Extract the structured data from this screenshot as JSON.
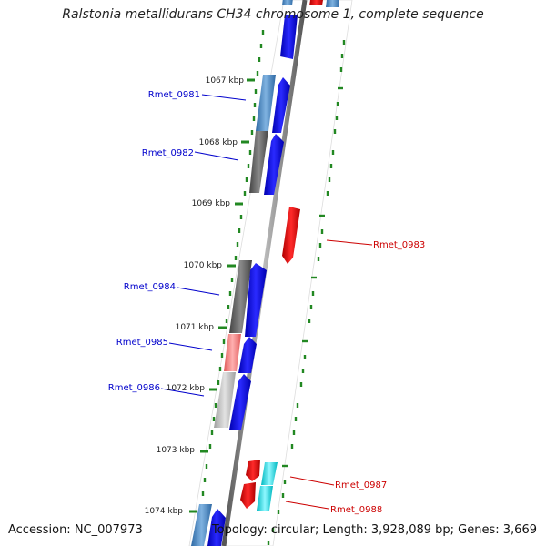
{
  "title": "Ralstonia metallidurans CH34 chromosome 1, complete sequence",
  "footer": {
    "accession": "Accession: NC_007973",
    "summary": "Topology: circular; Length: 3,928,089 bp; Genes: 3,669"
  },
  "ticks": [
    "1067 kbp",
    "1068 kbp",
    "1069 kbp",
    "1070 kbp",
    "1071 kbp",
    "1072 kbp",
    "1073 kbp",
    "1074 kbp"
  ],
  "genes": [
    {
      "name": "Rmet_0981",
      "strand": "+",
      "color": "#0000cc"
    },
    {
      "name": "Rmet_0982",
      "strand": "+",
      "color": "#0000cc"
    },
    {
      "name": "Rmet_0983",
      "strand": "-",
      "color": "#cc0000"
    },
    {
      "name": "Rmet_0984",
      "strand": "+",
      "color": "#0000cc"
    },
    {
      "name": "Rmet_0985",
      "strand": "+",
      "color": "#0000cc"
    },
    {
      "name": "Rmet_0986",
      "strand": "+",
      "color": "#0000cc"
    },
    {
      "name": "Rmet_0987",
      "strand": "-",
      "color": "#cc0000"
    },
    {
      "name": "Rmet_0988",
      "strand": "-",
      "color": "#cc0000"
    }
  ],
  "colors": {
    "forward_cds": "#0000ee",
    "reverse_cds": "#dd0000",
    "backbone": "#888888",
    "ticks": "#228822",
    "cog_blue": "#4a7fb5",
    "cog_gray": "#666666",
    "cog_pink": "#f08080",
    "cog_lightgray": "#c0c0c0",
    "cog_cyan": "#00e5ee"
  }
}
